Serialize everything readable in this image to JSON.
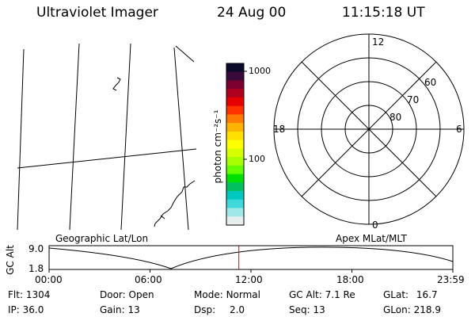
{
  "header": {
    "instrument": "Ultraviolet Imager",
    "date": "24 Aug 00",
    "time": "11:15:18 UT"
  },
  "colorbar": {
    "label": "photon cm⁻²s⁻¹",
    "tick_labels": [
      "1000",
      "100"
    ],
    "colors": [
      "#0a0a2a",
      "#3a0a3a",
      "#7a0030",
      "#b00020",
      "#e60000",
      "#ff3300",
      "#ff7a00",
      "#ffb300",
      "#ffe000",
      "#ffff00",
      "#d8ff00",
      "#a8ff00",
      "#66ff00",
      "#00e000",
      "#00c060",
      "#00c8c0",
      "#40d8d8",
      "#a0e8e8",
      "#e6eeee"
    ]
  },
  "polar": {
    "mlt_labels": {
      "top": "12",
      "left": "18",
      "right": "6",
      "bottom": "0"
    },
    "lat_labels": [
      "60",
      "70",
      "80"
    ]
  },
  "timeline": {
    "y_axis_label": "GC Alt",
    "y_ticks": [
      "9.0",
      "1.8"
    ],
    "left_title": "Geographic Lat/Lon",
    "right_title": "Apex MLat/MLT",
    "x_ticks": [
      "00:00",
      "06:00",
      "12:00",
      "18:00",
      "23:59"
    ],
    "current_time_fraction": 0.47
  },
  "info": {
    "flt": {
      "label": "Flt:",
      "value": "1304"
    },
    "ip": {
      "label": "IP:",
      "value": "36.0"
    },
    "door": {
      "label": "Door:",
      "value": "Open"
    },
    "gain": {
      "label": "Gain:",
      "value": "13"
    },
    "mode": {
      "label": "Mode:",
      "value": "Normal"
    },
    "dsp": {
      "label": "Dsp:",
      "value": "2.0"
    },
    "gc_alt": {
      "label": "GC Alt:",
      "value": "7.1 Re"
    },
    "seq": {
      "label": "Seq:",
      "value": "13"
    },
    "glat": {
      "label": "GLat:",
      "value": "16.7"
    },
    "glon": {
      "label": "GLon:",
      "value": "218.9"
    }
  }
}
